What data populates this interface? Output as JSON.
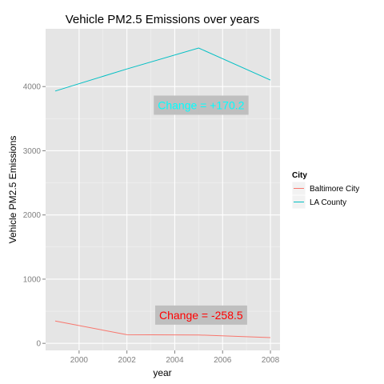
{
  "chart_data": {
    "type": "line",
    "title": "Vehicle PM2.5 Emissions over years",
    "xlabel": "year",
    "ylabel": "Vehicle PM2.5 Emissions",
    "xlim": [
      1998.6,
      2008.4
    ],
    "ylim": [
      -110,
      4900
    ],
    "x_ticks": [
      2000,
      2002,
      2004,
      2006,
      2008
    ],
    "x_tick_labels": [
      "2000",
      "2002",
      "2004",
      "2006",
      "2008"
    ],
    "y_ticks": [
      0,
      1000,
      2000,
      3000,
      4000
    ],
    "y_tick_labels": [
      "0",
      "1000",
      "2000",
      "3000",
      "4000"
    ],
    "grid": true,
    "panel_background": "#e5e5e5",
    "legend": {
      "title": "City",
      "placement": "right"
    },
    "series": [
      {
        "name": "Baltimore City",
        "color": "#f8766d",
        "x": [
          1999,
          2002,
          2005,
          2008
        ],
        "values": [
          347,
          134,
          130,
          89
        ]
      },
      {
        "name": "LA County",
        "color": "#00bfc4",
        "x": [
          1999,
          2002,
          2005,
          2008
        ],
        "values": [
          3931,
          4274,
          4601,
          4101
        ]
      }
    ],
    "annotations": [
      {
        "text": "Change = +170.2",
        "color": "#00ffff",
        "x": 2005.1,
        "y": 3710
      },
      {
        "text": "Change = -258.5",
        "color": "#ff0000",
        "x": 2005.1,
        "y": 440
      }
    ]
  }
}
